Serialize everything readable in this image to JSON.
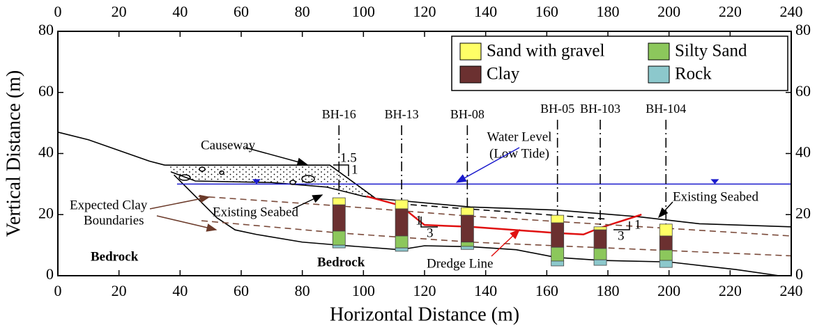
{
  "chart_data": {
    "type": "cross-section",
    "xlabel": "Horizontal Distance (m)",
    "ylabel": "Vertical Distance (m)",
    "xlim": [
      0,
      240
    ],
    "ylim": [
      0,
      80
    ],
    "xticks": [
      0,
      20,
      40,
      60,
      80,
      100,
      120,
      140,
      160,
      180,
      200,
      220,
      240
    ],
    "yticks": [
      0,
      20,
      40,
      60,
      80
    ],
    "legend": {
      "position": "upper right",
      "items": [
        {
          "name": "Sand with gravel",
          "color": "#ffff66"
        },
        {
          "name": "Silty Sand",
          "color": "#8cc75c"
        },
        {
          "name": "Clay",
          "color": "#6b3030"
        },
        {
          "name": "Rock",
          "color": "#8cc8cc"
        }
      ]
    },
    "lines": [
      {
        "color": "#000000",
        "style": "solid",
        "x": [
          0,
          10,
          20,
          30,
          35
        ],
        "y": [
          47,
          44.5,
          41,
          37.5,
          36.2
        ]
      },
      {
        "color": "#000000",
        "style": "solid",
        "fill": "dots",
        "x": [
          35,
          89,
          104
        ],
        "y": [
          36.2,
          36.2,
          25.3
        ]
      },
      {
        "color": "#000000",
        "style": "solid",
        "x": [
          37,
          45,
          70,
          88,
          100,
          104,
          135,
          163,
          190,
          210,
          240
        ],
        "y": [
          34,
          31,
          30.5,
          29,
          26,
          25.3,
          22.5,
          21.5,
          19.3,
          17,
          16
        ]
      },
      {
        "color": "#000000",
        "style": "solid",
        "x": [
          38,
          45,
          52,
          58,
          65,
          80,
          92,
          112,
          120,
          135,
          150,
          163,
          178,
          200,
          222,
          236
        ],
        "y": [
          33,
          26,
          19,
          15,
          13.5,
          11,
          10,
          8.5,
          9.8,
          9.5,
          8.5,
          6,
          5,
          4.5,
          2,
          0
        ]
      },
      {
        "color": "#1a1acc",
        "style": "solid",
        "x": [
          39,
          240
        ],
        "y": [
          30,
          30
        ],
        "markers_x": [
          65,
          215
        ]
      },
      {
        "color": "#e01010",
        "style": "solid",
        "x": [
          101,
          112,
          120,
          135,
          163,
          172,
          177,
          191
        ],
        "y": [
          26,
          23,
          16.6,
          16,
          14,
          13.5,
          15.5,
          20
        ]
      },
      {
        "color": "#7a4a3a",
        "style": "dashed",
        "x": [
          46,
          90,
          135,
          240
        ],
        "y": [
          26,
          23,
          19.5,
          13
        ]
      },
      {
        "color": "#7a4a3a",
        "style": "dashed",
        "x": [
          47,
          92,
          135,
          240
        ],
        "y": [
          18,
          14,
          11,
          6.5
        ]
      },
      {
        "color": "#000000",
        "style": "dashed",
        "x": [
          112,
          180
        ],
        "y": [
          23.5,
          18.5
        ]
      }
    ],
    "boreholes": [
      {
        "name": "BH-16",
        "x": 92,
        "layers": [
          {
            "soil": 0,
            "top": 25.5,
            "bottom": 23.2
          },
          {
            "soil": 2,
            "top": 23.2,
            "bottom": 14.6
          },
          {
            "soil": 1,
            "top": 14.6,
            "bottom": 10
          },
          {
            "soil": 3,
            "top": 10,
            "bottom": 9.1
          }
        ]
      },
      {
        "name": "BH-13",
        "x": 112.5,
        "layers": [
          {
            "soil": 0,
            "top": 24.8,
            "bottom": 21.9
          },
          {
            "soil": 2,
            "top": 21.9,
            "bottom": 13
          },
          {
            "soil": 1,
            "top": 13,
            "bottom": 9.1
          },
          {
            "soil": 3,
            "top": 9.1,
            "bottom": 8
          }
        ]
      },
      {
        "name": "BH-08",
        "x": 134,
        "layers": [
          {
            "soil": 0,
            "top": 22.3,
            "bottom": 19.8
          },
          {
            "soil": 2,
            "top": 19.8,
            "bottom": 11
          },
          {
            "soil": 1,
            "top": 11,
            "bottom": 9.6
          },
          {
            "soil": 3,
            "top": 9.6,
            "bottom": 8.6
          }
        ]
      },
      {
        "name": "BH-05",
        "x": 163.5,
        "layers": [
          {
            "soil": 0,
            "top": 19.8,
            "bottom": 17.3
          },
          {
            "soil": 2,
            "top": 17.3,
            "bottom": 9.3
          },
          {
            "soil": 1,
            "top": 9.3,
            "bottom": 4.8
          },
          {
            "soil": 3,
            "top": 4.8,
            "bottom": 3.2
          }
        ]
      },
      {
        "name": "BH-103",
        "x": 177.5,
        "layers": [
          {
            "soil": 0,
            "top": 16,
            "bottom": 15
          },
          {
            "soil": 2,
            "top": 15,
            "bottom": 8.9
          },
          {
            "soil": 1,
            "top": 8.9,
            "bottom": 5.2
          },
          {
            "soil": 3,
            "top": 5.2,
            "bottom": 3.4
          }
        ]
      },
      {
        "name": "BH-104",
        "x": 199,
        "layers": [
          {
            "soil": 0,
            "top": 16.9,
            "bottom": 13
          },
          {
            "soil": 2,
            "top": 13,
            "bottom": 8.4
          },
          {
            "soil": 1,
            "top": 8.4,
            "bottom": 5
          },
          {
            "soil": 3,
            "top": 5,
            "bottom": 2.7
          }
        ]
      }
    ],
    "annotations": [
      "Causeway",
      "Water Level",
      "(Low Tide)",
      "Expected Clay",
      "Boundaries",
      "Existing Seabed",
      "Existing Seabed",
      "Bedrock",
      "Bedrock",
      "Dredge Line",
      "1.5",
      "1",
      "1",
      "3",
      "3",
      "1"
    ]
  }
}
